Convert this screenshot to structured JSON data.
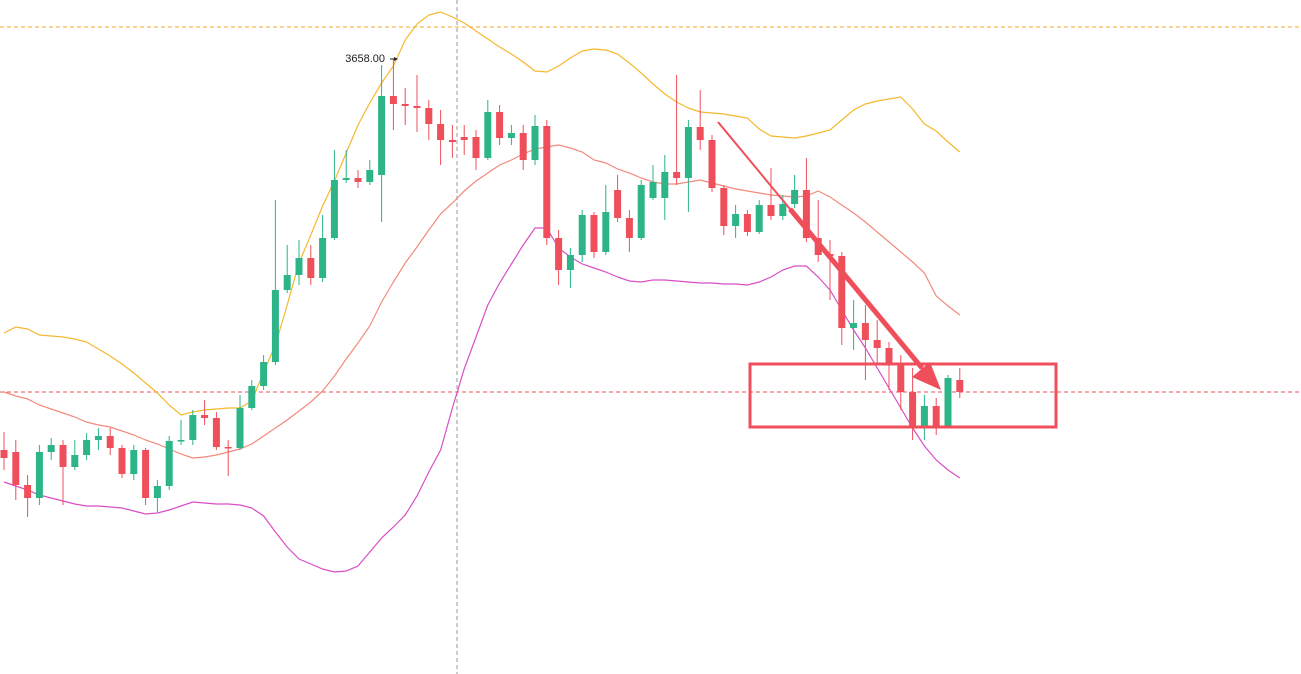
{
  "chart_data": {
    "type": "candlestick",
    "annotation": "3658.00",
    "categories": [
      null,
      null,
      null,
      null,
      null,
      null,
      null,
      null,
      null,
      null,
      null,
      null,
      null,
      null,
      null,
      null,
      null,
      null,
      null,
      null,
      null,
      null,
      null,
      null,
      null,
      null,
      null,
      null,
      null,
      null,
      null,
      null,
      null,
      null,
      null,
      null,
      null,
      null,
      null,
      null,
      null,
      null,
      null,
      null,
      null,
      null,
      null,
      null,
      null,
      null,
      null,
      null,
      null,
      null,
      null,
      null,
      null,
      null,
      null,
      null,
      null,
      null,
      null,
      null,
      null,
      null,
      null,
      null,
      null,
      null,
      null,
      null,
      null,
      null,
      null,
      null,
      null,
      null,
      null,
      null,
      null,
      null
    ],
    "ylim": [
      3043,
      3717
    ],
    "up_color": "#2db489",
    "down_color": "#ef4f5b",
    "open": [
      3267,
      3265,
      3232,
      3219,
      3265,
      3272,
      3250,
      3262,
      3277,
      3281,
      3269,
      3243,
      3267,
      3219,
      3231,
      3276,
      3277,
      3302,
      3299,
      3270,
      3269,
      3309,
      3331,
      3355,
      3427,
      3442,
      3459,
      3439,
      3479,
      3537,
      3539,
      3535,
      3542,
      3621,
      3613,
      3611,
      3609,
      3593,
      3577,
      3580,
      3580,
      3559,
      3605,
      3579,
      3584,
      3557,
      3591,
      3479,
      3447,
      3462,
      3502,
      3465,
      3527,
      3499,
      3479,
      3519,
      3519,
      3545,
      3539,
      3590,
      3577,
      3529,
      3491,
      3503,
      3485,
      3512,
      3501,
      3513,
      3527,
      3479,
      3463,
      3461,
      3389,
      3394,
      3377,
      3369,
      3352,
      3325,
      3291,
      3311,
      3291,
      3337
    ],
    "high": [
      3285,
      3277,
      3242,
      3272,
      3279,
      3277,
      3277,
      3284,
      3289,
      3289,
      3272,
      3272,
      3269,
      3237,
      3281,
      3297,
      3307,
      3317,
      3305,
      3277,
      3322,
      3337,
      3362,
      3517,
      3472,
      3477,
      3472,
      3502,
      3567,
      3567,
      3547,
      3557,
      3652,
      3658,
      3629,
      3642,
      3617,
      3607,
      3592,
      3592,
      3587,
      3617,
      3612,
      3592,
      3592,
      3602,
      3597,
      3487,
      3469,
      3507,
      3505,
      3532,
      3542,
      3507,
      3537,
      3552,
      3562,
      3642,
      3597,
      3627,
      3582,
      3532,
      3512,
      3507,
      3517,
      3549,
      3522,
      3542,
      3559,
      3517,
      3477,
      3465,
      3417,
      3412,
      3397,
      3375,
      3362,
      3349,
      3322,
      3319,
      3342,
      3349
    ],
    "low": [
      3247,
      3217,
      3200,
      3212,
      3257,
      3212,
      3247,
      3257,
      3267,
      3262,
      3239,
      3237,
      3212,
      3205,
      3227,
      3272,
      3272,
      3292,
      3267,
      3241,
      3267,
      3307,
      3327,
      3352,
      3424,
      3432,
      3432,
      3435,
      3477,
      3534,
      3529,
      3532,
      3495,
      3587,
      3592,
      3585,
      3577,
      3552,
      3559,
      3562,
      3547,
      3557,
      3572,
      3572,
      3547,
      3552,
      3472,
      3432,
      3429,
      3455,
      3459,
      3462,
      3495,
      3465,
      3477,
      3517,
      3497,
      3532,
      3505,
      3567,
      3525,
      3482,
      3479,
      3481,
      3483,
      3497,
      3497,
      3509,
      3475,
      3455,
      3417,
      3372,
      3367,
      3337,
      3352,
      3327,
      3307,
      3277,
      3277,
      3282,
      3289,
      3319
    ],
    "close": [
      3259,
      3232,
      3219,
      3265,
      3272,
      3250,
      3262,
      3277,
      3281,
      3269,
      3243,
      3267,
      3219,
      3231,
      3276,
      3277,
      3302,
      3299,
      3270,
      3269,
      3309,
      3331,
      3355,
      3427,
      3442,
      3459,
      3439,
      3479,
      3537,
      3539,
      3535,
      3547,
      3621,
      3613,
      3611,
      3609,
      3593,
      3577,
      3575,
      3577,
      3559,
      3605,
      3579,
      3584,
      3557,
      3591,
      3479,
      3447,
      3462,
      3502,
      3465,
      3505,
      3499,
      3479,
      3532,
      3535,
      3545,
      3539,
      3590,
      3577,
      3529,
      3491,
      3503,
      3485,
      3512,
      3501,
      3513,
      3527,
      3479,
      3462,
      3461,
      3389,
      3394,
      3377,
      3369,
      3352,
      3325,
      3291,
      3311,
      3291,
      3339,
      3325
    ],
    "series": [
      {
        "color": "#f5b82e",
        "values": [
          3384,
          3390,
          3388,
          3382,
          3381,
          3380,
          3378,
          3375,
          3368,
          3361,
          3353,
          3344,
          3334,
          3324,
          3312,
          3302,
          3305,
          3307,
          3308,
          3309,
          3309,
          3316,
          3345,
          3372,
          3412,
          3454,
          3482,
          3511,
          3536,
          3564,
          3592,
          3614,
          3634,
          3651,
          3677,
          3693,
          3702,
          3705,
          3700,
          3694,
          3686,
          3678,
          3670,
          3663,
          3655,
          3646,
          3645,
          3651,
          3659,
          3666,
          3668,
          3667,
          3663,
          3654,
          3644,
          3633,
          3623,
          3615,
          3609,
          3605,
          3604,
          3603,
          3601,
          3599,
          3588,
          3581,
          3580,
          3579,
          3581,
          3584,
          3587,
          3597,
          3607,
          3613,
          3616,
          3618,
          3620,
          3608,
          3593,
          3586,
          3575,
          3565
        ]
      },
      {
        "color": "#f28a7c",
        "values": [
          3325,
          3321,
          3318,
          3312,
          3308,
          3304,
          3300,
          3295,
          3292,
          3290,
          3286,
          3282,
          3277,
          3273,
          3268,
          3263,
          3259,
          3260,
          3262,
          3265,
          3268,
          3273,
          3281,
          3289,
          3297,
          3306,
          3315,
          3326,
          3341,
          3358,
          3374,
          3391,
          3415,
          3435,
          3454,
          3470,
          3487,
          3503,
          3514,
          3526,
          3536,
          3544,
          3552,
          3557,
          3563,
          3568,
          3570,
          3572,
          3569,
          3565,
          3557,
          3554,
          3548,
          3544,
          3539,
          3535,
          3533,
          3533,
          3535,
          3537,
          3534,
          3531,
          3528,
          3526,
          3524,
          3522,
          3521,
          3520,
          3521,
          3526,
          3520,
          3512,
          3504,
          3495,
          3485,
          3475,
          3465,
          3455,
          3444,
          3421,
          3411,
          3402
        ]
      },
      {
        "color": "#d84fc6",
        "values": [
          3235,
          3231,
          3227,
          3222,
          3219,
          3216,
          3213,
          3211,
          3211,
          3210,
          3209,
          3206,
          3203,
          3204,
          3207,
          3211,
          3215,
          3214,
          3213,
          3213,
          3212,
          3209,
          3201,
          3185,
          3170,
          3158,
          3153,
          3148,
          3145,
          3146,
          3151,
          3165,
          3179,
          3190,
          3202,
          3221,
          3245,
          3267,
          3309,
          3348,
          3380,
          3412,
          3434,
          3453,
          3472,
          3489,
          3489,
          3469,
          3460,
          3453,
          3449,
          3445,
          3440,
          3436,
          3435,
          3437,
          3437,
          3436,
          3435,
          3434,
          3434,
          3433,
          3433,
          3432,
          3435,
          3440,
          3447,
          3451,
          3451,
          3440,
          3427,
          3407,
          3387,
          3369,
          3349,
          3329,
          3309,
          3289,
          3271,
          3257,
          3247,
          3239
        ]
      }
    ],
    "price_lines": [
      {
        "value": 3690,
        "color": "#f5a623"
      },
      {
        "value": 3325,
        "color": "#ef4f5b"
      }
    ]
  }
}
